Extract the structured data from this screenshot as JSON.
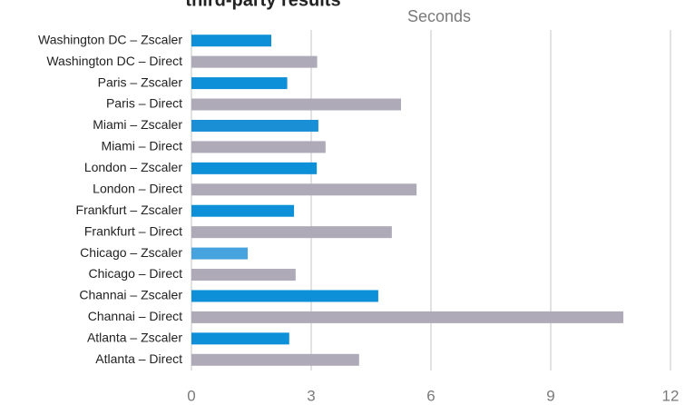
{
  "chart_data": {
    "type": "bar",
    "orientation": "horizontal",
    "title": "third-party results",
    "x_label": "Seconds",
    "categories": [
      "Washington DC – Zscaler",
      "Washington DC – Direct",
      "Paris – Zscaler",
      "Paris – Direct",
      "Miami – Zscaler",
      "Miami – Direct",
      "London – Zscaler",
      "London – Direct",
      "Frankfurt – Zscaler",
      "Frankfurt – Direct",
      "Chicago – Zscaler",
      "Chicago – Direct",
      "Channai – Zscaler",
      "Channai – Direct",
      "Atlanta – Zscaler",
      "Atlanta – Direct"
    ],
    "values": [
      2.0,
      3.15,
      2.4,
      5.25,
      3.18,
      3.36,
      3.14,
      5.64,
      2.57,
      5.02,
      1.41,
      2.61,
      4.68,
      10.82,
      2.45,
      4.2
    ],
    "colors": [
      "#0e90d8",
      "#aeaab8",
      "#0e90d8",
      "#aeaab8",
      "#1a8fd6",
      "#aeaab8",
      "#0e90d8",
      "#aeaab8",
      "#0e90d8",
      "#aeaab8",
      "#46a3dd",
      "#aeaab8",
      "#0e90d8",
      "#aeaab8",
      "#0e90d8",
      "#aeaab8"
    ],
    "xlim": [
      0,
      12
    ],
    "xticks": [
      0,
      3,
      6,
      9,
      12
    ],
    "grid": true
  }
}
